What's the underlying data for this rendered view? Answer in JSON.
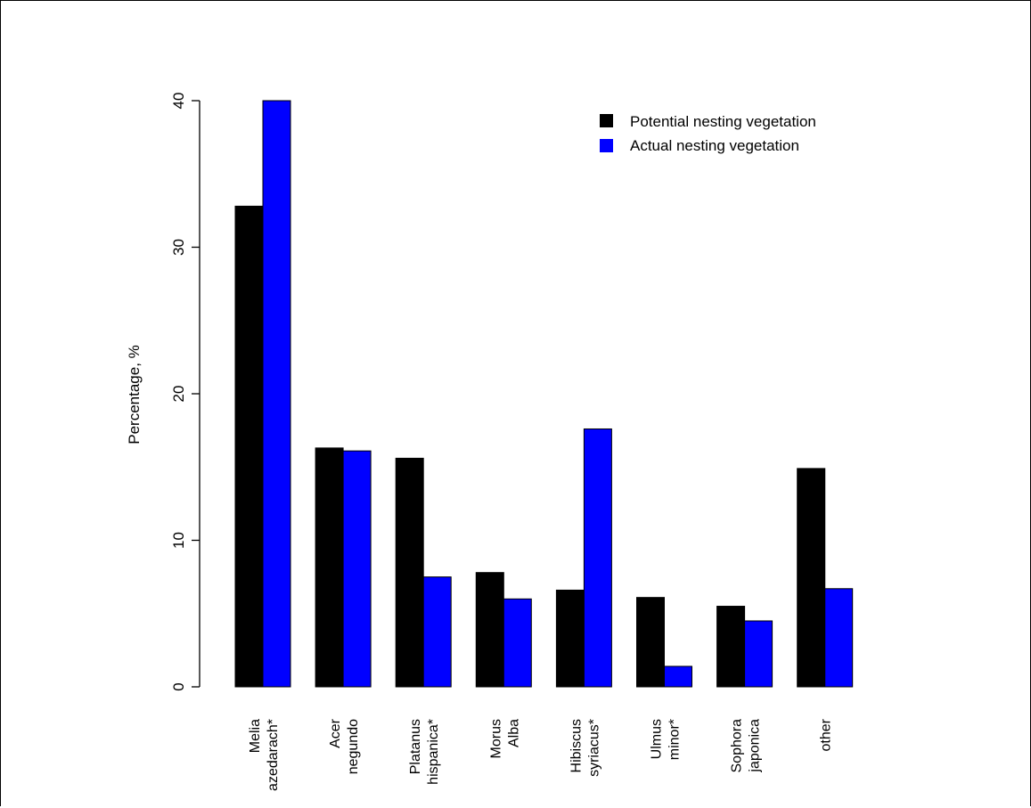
{
  "chart_data": {
    "type": "bar",
    "title": "",
    "xlabel": "",
    "ylabel": "Percentage, %",
    "ylim": [
      0,
      40
    ],
    "yticks": [
      0,
      10,
      20,
      30,
      40
    ],
    "grid": false,
    "legend_position": "top-right",
    "categories": [
      [
        "Melia",
        "azedarach*"
      ],
      [
        "Acer",
        "negundo"
      ],
      [
        "Platanus",
        "hispanica*"
      ],
      [
        "Morus",
        "Alba"
      ],
      [
        "Hibiscus",
        "syriacus*"
      ],
      [
        "Ulmus",
        "minor*"
      ],
      [
        "Sophora",
        "japonica"
      ],
      [
        "other"
      ]
    ],
    "series": [
      {
        "name": "Potential nesting vegetation",
        "color": "#000000",
        "values": [
          32.8,
          16.3,
          15.6,
          7.8,
          6.6,
          6.1,
          5.5,
          14.9
        ]
      },
      {
        "name": "Actual nesting vegetation",
        "color": "#0000ff",
        "values": [
          40.0,
          16.1,
          7.5,
          6.0,
          17.6,
          1.4,
          4.5,
          6.7
        ]
      }
    ]
  }
}
